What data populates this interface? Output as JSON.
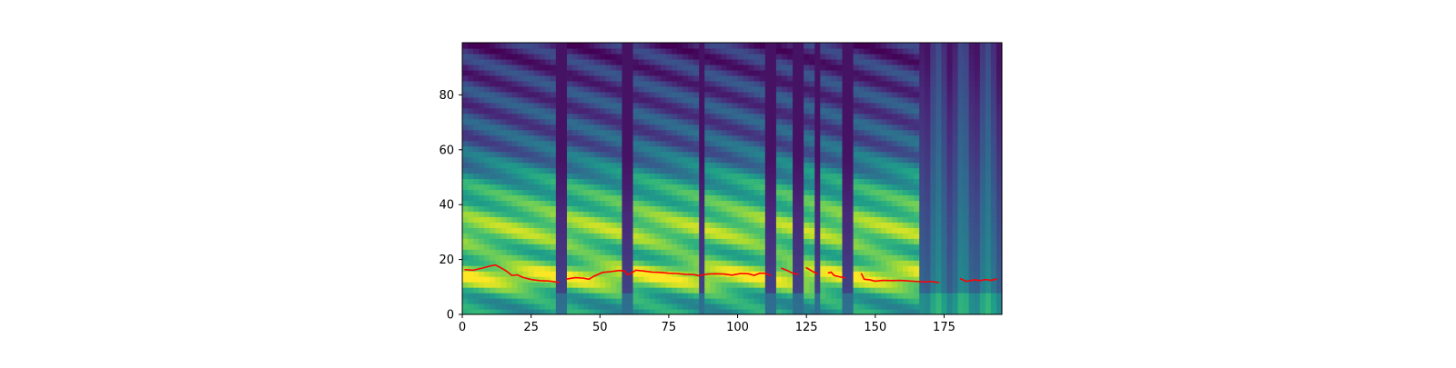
{
  "chart_data": {
    "type": "heatmap",
    "title": "",
    "xlabel": "",
    "ylabel": "",
    "xlim": [
      0,
      196
    ],
    "ylim": [
      0,
      99
    ],
    "colormap": "viridis",
    "x_ticks": [
      0,
      25,
      50,
      75,
      100,
      125,
      150,
      175
    ],
    "y_ticks": [
      0,
      20,
      40,
      60,
      80
    ],
    "heatmap": {
      "description": "mel-spectrogram, 196 frames x 100 mel bins",
      "silent_frames": [
        {
          "start": 35,
          "end": 38
        },
        {
          "start": 59,
          "end": 62
        },
        {
          "start": 87,
          "end": 89
        },
        {
          "start": 110,
          "end": 114
        },
        {
          "start": 121,
          "end": 124
        },
        {
          "start": 128,
          "end": 131
        },
        {
          "start": 139,
          "end": 143
        },
        {
          "start": 167,
          "end": 196
        }
      ],
      "harmonic_bands": [
        14,
        30,
        44
      ]
    },
    "series": [
      {
        "name": "pitch contour",
        "color": "#ff0000",
        "segments": [
          [
            [
              1,
              16.3
            ],
            [
              4,
              16.1
            ],
            [
              7,
              16.8
            ],
            [
              10,
              17.6
            ],
            [
              12,
              18.0
            ],
            [
              14,
              17.0
            ],
            [
              16,
              15.8
            ],
            [
              18,
              14.2
            ],
            [
              20,
              14.4
            ],
            [
              22,
              13.5
            ],
            [
              25,
              12.7
            ],
            [
              28,
              12.3
            ],
            [
              31,
              12.2
            ],
            [
              33,
              12.0
            ],
            [
              35,
              11.6
            ]
          ],
          [
            [
              38,
              12.9
            ],
            [
              41,
              13.4
            ],
            [
              44,
              13.2
            ],
            [
              46,
              12.8
            ],
            [
              48,
              14.0
            ],
            [
              51,
              15.3
            ],
            [
              54,
              15.6
            ],
            [
              57,
              16.0
            ],
            [
              59,
              15.8
            ],
            [
              60,
              14.4
            ],
            [
              61,
              14.8
            ],
            [
              63,
              16.1
            ],
            [
              66,
              15.8
            ],
            [
              69,
              15.4
            ],
            [
              72,
              15.3
            ],
            [
              75,
              15.0
            ],
            [
              78,
              14.9
            ],
            [
              81,
              14.6
            ],
            [
              84,
              14.5
            ],
            [
              86,
              14.1
            ],
            [
              89,
              14.7
            ],
            [
              92,
              14.8
            ],
            [
              95,
              14.7
            ],
            [
              98,
              14.3
            ],
            [
              101,
              14.9
            ],
            [
              104,
              14.8
            ],
            [
              106,
              14.2
            ],
            [
              108,
              15.0
            ],
            [
              110,
              15.0
            ],
            [
              112,
              14.2
            ]
          ],
          [
            [
              116,
              16.8
            ],
            [
              118,
              16.0
            ],
            [
              120,
              15.0
            ],
            [
              122,
              14.6
            ]
          ],
          [
            [
              125,
              17.0
            ],
            [
              127,
              15.8
            ],
            [
              129,
              14.8
            ]
          ],
          [
            [
              133,
              15.1
            ],
            [
              134,
              15.4
            ],
            [
              135,
              14.2
            ],
            [
              137,
              13.7
            ],
            [
              139,
              13.3
            ]
          ],
          [
            [
              145,
              14.8
            ],
            [
              146,
              12.8
            ],
            [
              148,
              12.6
            ],
            [
              150,
              12.1
            ],
            [
              153,
              12.4
            ],
            [
              156,
              12.3
            ],
            [
              159,
              12.4
            ],
            [
              162,
              12.2
            ],
            [
              165,
              12.0
            ],
            [
              168,
              11.8
            ],
            [
              170,
              12.0
            ],
            [
              173,
              11.6
            ]
          ],
          [
            [
              181,
              13.0
            ],
            [
              183,
              12.0
            ],
            [
              186,
              12.6
            ],
            [
              188,
              12.3
            ],
            [
              190,
              12.7
            ],
            [
              192,
              12.4
            ],
            [
              194,
              12.9
            ]
          ]
        ]
      }
    ]
  }
}
